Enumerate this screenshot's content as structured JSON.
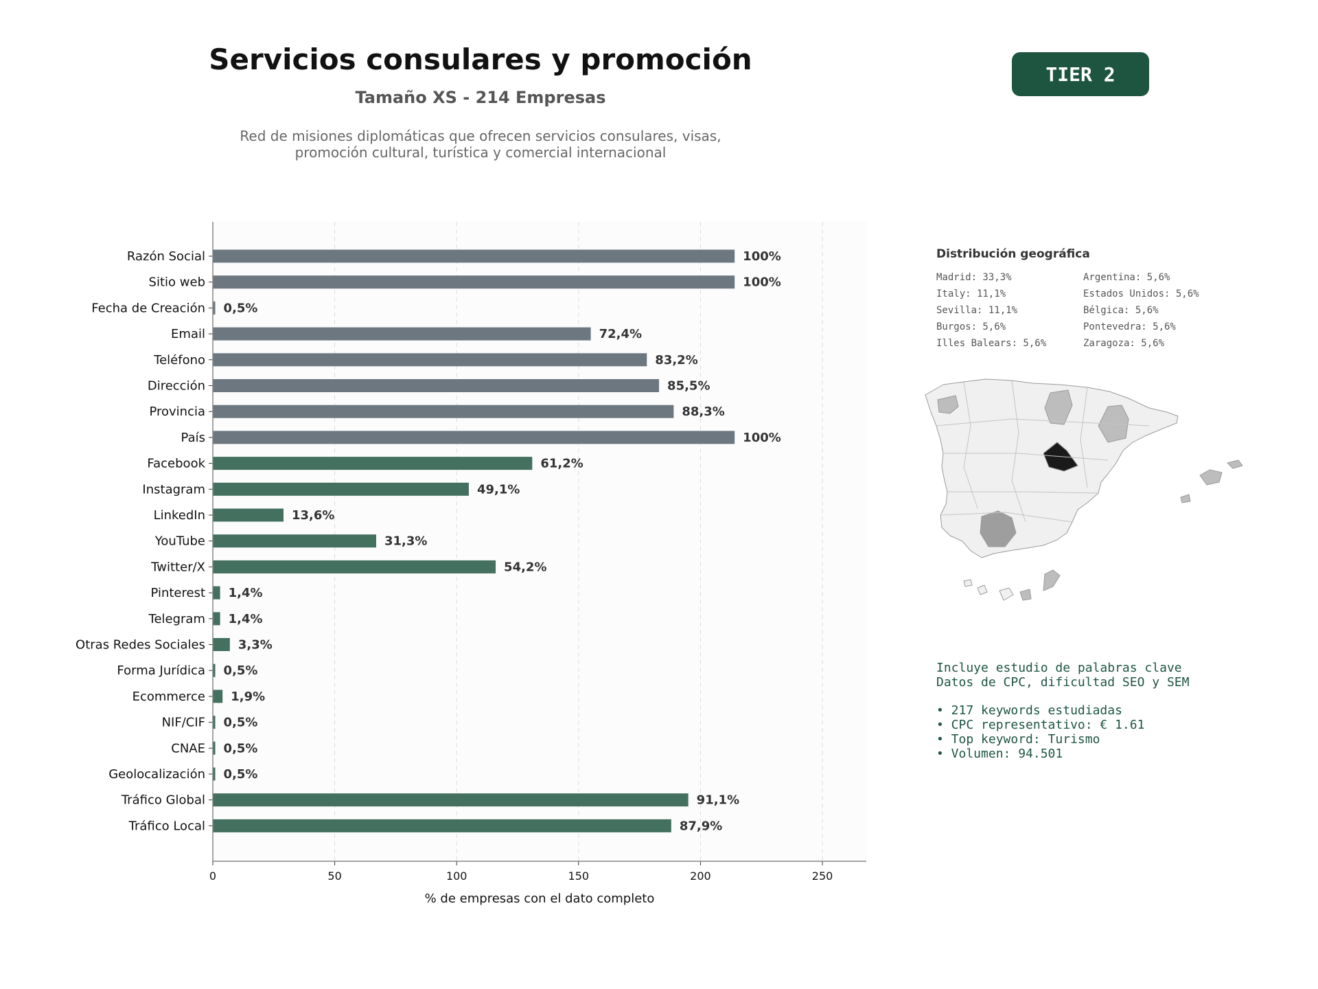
{
  "header": {
    "title": "Servicios consulares y promoción",
    "subtitle": "Tamaño XS - 214 Empresas",
    "description_line1": "Red de misiones diplomáticas que ofrecen servicios consulares, visas,",
    "description_line2": "promoción cultural, turística y comercial internacional",
    "tier": "TIER 2"
  },
  "colors": {
    "contact_bar": "#6c7780",
    "digital_bar": "#44705f",
    "tier_badge": "#1e5541",
    "text_green": "#1e5541"
  },
  "chart_data": {
    "type": "bar",
    "orientation": "horizontal",
    "xlabel": "% de empresas con el dato completo",
    "xlim": [
      0,
      268
    ],
    "xticks": [
      0,
      50,
      100,
      150,
      200,
      250
    ],
    "grid": "vertical dashed",
    "categories": [
      "Razón Social",
      "Sitio web",
      "Fecha de Creación",
      "Email",
      "Teléfono",
      "Dirección",
      "Provincia",
      "País",
      "Facebook",
      "Instagram",
      "LinkedIn",
      "YouTube",
      "Twitter/X",
      "Pinterest",
      "Telegram",
      "Otras Redes Sociales",
      "Forma Jurídica",
      "Ecommerce",
      "NIF/CIF",
      "CNAE",
      "Geolocalización",
      "Tráfico Global",
      "Tráfico Local"
    ],
    "values": [
      214,
      214,
      1,
      155,
      178,
      183,
      189,
      214,
      131,
      105,
      29,
      67,
      116,
      3,
      3,
      7,
      1,
      4,
      1,
      1,
      1,
      195,
      188
    ],
    "labels": [
      "100%",
      "100%",
      "0,5%",
      "72,4%",
      "83,2%",
      "85,5%",
      "88,3%",
      "100%",
      "61,2%",
      "49,1%",
      "13,6%",
      "31,3%",
      "54,2%",
      "1,4%",
      "1,4%",
      "3,3%",
      "0,5%",
      "1,9%",
      "0,5%",
      "0,5%",
      "0,5%",
      "91,1%",
      "87,9%"
    ],
    "groups": [
      "contact",
      "contact",
      "contact",
      "contact",
      "contact",
      "contact",
      "contact",
      "contact",
      "digital",
      "digital",
      "digital",
      "digital",
      "digital",
      "digital",
      "digital",
      "digital",
      "digital",
      "digital",
      "digital",
      "digital",
      "digital",
      "digital",
      "digital"
    ]
  },
  "geo": {
    "title": "Distribución geográfica",
    "left": [
      "Madrid: 33,3%",
      "Italy: 11,1%",
      "Sevilla: 11,1%",
      "Burgos: 5,6%",
      "Illes Balears: 5,6%"
    ],
    "right": [
      "Argentina: 5,6%",
      "Estados Unidos: 5,6%",
      "Bélgica: 5,6%",
      "Pontevedra: 5,6%",
      "Zaragoza: 5,6%"
    ]
  },
  "keywords": {
    "line1": "Incluye estudio de palabras clave",
    "line2": "Datos de CPC, dificultad SEO y SEM",
    "bullets": [
      "• 217 keywords estudiadas",
      "• CPC representativo: € 1.61",
      "• Top keyword: Turismo",
      "• Volumen: 94.501"
    ]
  }
}
